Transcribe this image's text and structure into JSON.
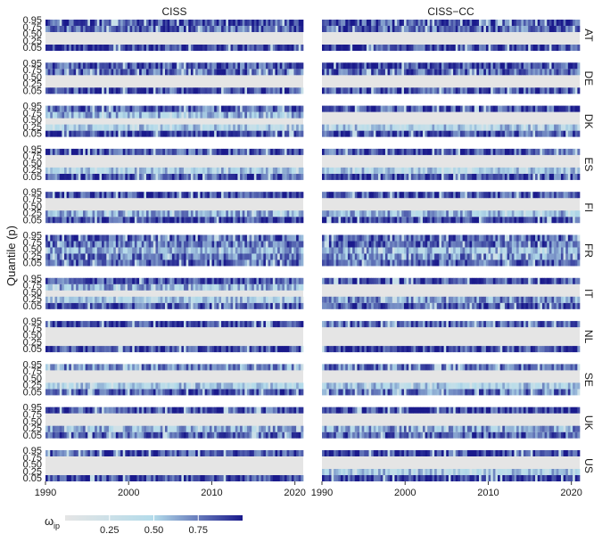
{
  "chart_data": {
    "type": "heatmap",
    "title": "",
    "ylabel": "Quantile (p)",
    "facet_columns": [
      "CISS",
      "CISS−CC"
    ],
    "facet_rows": [
      "AT",
      "DE",
      "DK",
      "ES",
      "FI",
      "FR",
      "IT",
      "NL",
      "SE",
      "UK",
      "US"
    ],
    "x_range": [
      1990,
      2021
    ],
    "x_ticks": [
      1990,
      2000,
      2010,
      2020
    ],
    "y_categories": [
      0.05,
      0.25,
      0.5,
      0.75,
      0.95
    ],
    "y_tick_labels": [
      "0.95",
      "0.75",
      "0.50",
      "0.25",
      "0.05"
    ],
    "legend": {
      "title": "ω",
      "title_subscript": "ip",
      "position": "bottom-left",
      "range": [
        0,
        1
      ],
      "ticks": [
        0.25,
        0.5,
        0.75
      ],
      "tick_labels": [
        "0.25",
        "0.50",
        "0.75"
      ],
      "colors": [
        "#e5e5e5",
        "#b3dbea",
        "#1a1a8c"
      ]
    },
    "missing_color": "#e5e5e5",
    "row_levels": {
      "note_values": "approximate mean weight per quantile band, read from colour",
      "CISS": {
        "AT": [
          0.9,
          0.0,
          0.0,
          0.8,
          0.85
        ],
        "DE": [
          0.85,
          0.0,
          0.0,
          0.8,
          0.85
        ],
        "DK": [
          0.9,
          0.5,
          0.0,
          0.6,
          0.8
        ],
        "ES": [
          0.85,
          0.5,
          0.0,
          0.0,
          0.85
        ],
        "FI": [
          0.9,
          0.6,
          0.0,
          0.0,
          0.9
        ],
        "FR": [
          0.8,
          0.75,
          0.6,
          0.75,
          0.8
        ],
        "IT": [
          0.85,
          0.5,
          0.0,
          0.6,
          0.85
        ],
        "NL": [
          0.9,
          0.0,
          0.0,
          0.0,
          0.9
        ],
        "SE": [
          0.85,
          0.5,
          0.0,
          0.0,
          0.7
        ],
        "UK": [
          0.8,
          0.6,
          0.0,
          0.0,
          0.85
        ],
        "US": [
          0.9,
          0.0,
          0.0,
          0.0,
          0.85
        ]
      },
      "CISS−CC": {
        "AT": [
          0.9,
          0.0,
          0.0,
          0.8,
          0.85
        ],
        "DE": [
          0.85,
          0.0,
          0.0,
          0.8,
          0.85
        ],
        "DK": [
          0.85,
          0.5,
          0.0,
          0.0,
          0.85
        ],
        "ES": [
          0.85,
          0.5,
          0.0,
          0.0,
          0.85
        ],
        "FI": [
          0.9,
          0.6,
          0.0,
          0.0,
          0.85
        ],
        "FR": [
          0.8,
          0.7,
          0.6,
          0.8,
          0.8
        ],
        "IT": [
          0.85,
          0.7,
          0.0,
          0.0,
          0.85
        ],
        "NL": [
          0.9,
          0.0,
          0.0,
          0.0,
          0.8
        ],
        "SE": [
          0.75,
          0.5,
          0.0,
          0.0,
          0.75
        ],
        "UK": [
          0.8,
          0.65,
          0.0,
          0.0,
          0.9
        ],
        "US": [
          0.9,
          0.5,
          0.0,
          0.0,
          0.9
        ]
      }
    }
  }
}
